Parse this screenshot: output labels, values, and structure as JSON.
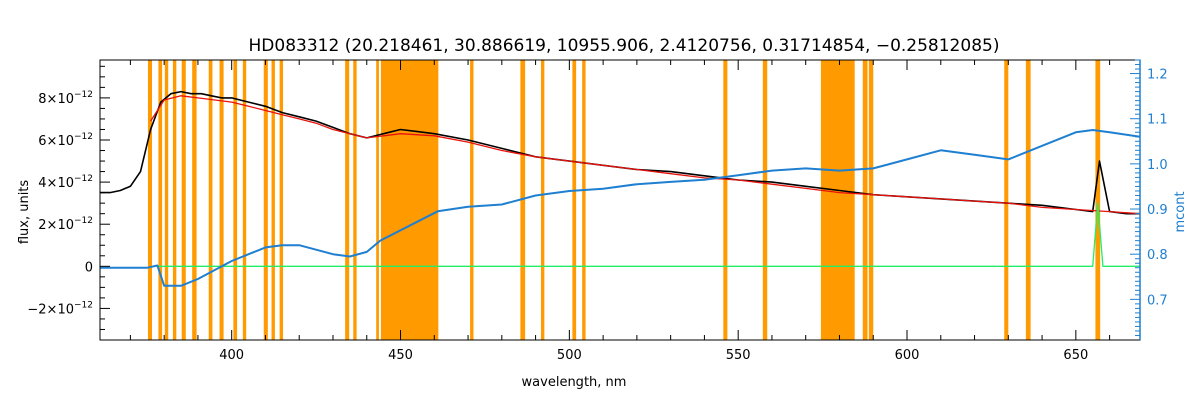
{
  "chart_data": {
    "type": "line",
    "title": "HD083312    (20.218461, 30.886619, 10955.906, 2.4120756, 0.31714854, −0.25812085)",
    "xlabel": "wavelength, nm",
    "ylabel": "flux, units",
    "y2label": "mcont",
    "xlim": [
      361,
      669
    ],
    "ylim": [
      -3.5e-12,
      9.8e-12
    ],
    "y2lim": [
      0.61,
      1.23
    ],
    "x_ticks": [
      400,
      450,
      500,
      550,
      600,
      650
    ],
    "x_tick_labels": [
      "400",
      "450",
      "500",
      "550",
      "600",
      "650"
    ],
    "y_ticks": [
      -2e-12,
      0,
      2e-12,
      4e-12,
      6e-12,
      8e-12
    ],
    "y_tick_bases": [
      "−2×10",
      "0",
      "2×10",
      "4×10",
      "6×10",
      "8×10"
    ],
    "y_tick_exps": [
      "−12",
      "",
      "−12",
      "−12",
      "−12",
      "−12"
    ],
    "y2_ticks": [
      0.7,
      0.8,
      0.9,
      1.0,
      1.1,
      1.2
    ],
    "y2_tick_labels": [
      "0.7",
      "0.8",
      "0.9",
      "1.0",
      "1.1",
      "1.2"
    ],
    "grid": false,
    "colors": {
      "observed": "#000000",
      "model": "#e8120c",
      "residual": "#22ee66",
      "mcont": "#1f7fd0",
      "masked": "#ff9a00",
      "highlight": "#ffff00",
      "right_axis": "#1f7fd0"
    },
    "masked_regions": [
      [
        375.2,
        376.4
      ],
      [
        378.3,
        379.4
      ],
      [
        380.2,
        381.2
      ],
      [
        382.6,
        383.6
      ],
      [
        385.2,
        386.4
      ],
      [
        388.3,
        389.6
      ],
      [
        393.2,
        394.3
      ],
      [
        396.4,
        397.6
      ],
      [
        400.5,
        401.6
      ],
      [
        403.3,
        404.3
      ],
      [
        409.5,
        410.7
      ],
      [
        411.8,
        412.8
      ],
      [
        414.2,
        415.2
      ],
      [
        433.6,
        434.8
      ],
      [
        436.0,
        437.0
      ],
      [
        442.8,
        443.6
      ],
      [
        444.2,
        461.2
      ],
      [
        470.6,
        471.6
      ],
      [
        485.5,
        486.9
      ],
      [
        491.6,
        492.6
      ],
      [
        500.9,
        502.0
      ],
      [
        503.8,
        504.8
      ],
      [
        545.6,
        546.8
      ],
      [
        557.3,
        558.6
      ],
      [
        574.5,
        584.5
      ],
      [
        586.9,
        588.3
      ],
      [
        588.7,
        590.0
      ],
      [
        628.8,
        630.0
      ],
      [
        635.2,
        636.6
      ],
      [
        655.8,
        657.2
      ]
    ],
    "series": [
      {
        "role": "observed",
        "x": [
          361,
          364,
          367,
          370,
          373,
          376,
          379,
          382,
          385,
          388,
          391,
          394,
          397,
          400,
          405,
          410,
          415,
          420,
          425,
          430,
          435,
          440,
          445,
          450,
          455,
          460,
          470,
          480,
          490,
          500,
          510,
          520,
          530,
          540,
          550,
          560,
          570,
          580,
          590,
          600,
          610,
          620,
          630,
          640,
          650,
          655,
          657,
          660,
          665,
          669
        ],
        "y": [
          3.5e-12,
          3.5e-12,
          3.6e-12,
          3.8e-12,
          4.5e-12,
          6.5e-12,
          7.8e-12,
          8.2e-12,
          8.3e-12,
          8.2e-12,
          8.2e-12,
          8.1e-12,
          8e-12,
          8e-12,
          7.8e-12,
          7.6e-12,
          7.3e-12,
          7.1e-12,
          6.9e-12,
          6.6e-12,
          6.3e-12,
          6.1e-12,
          6.3e-12,
          6.5e-12,
          6.4e-12,
          6.3e-12,
          6e-12,
          5.6e-12,
          5.2e-12,
          5e-12,
          4.8e-12,
          4.6e-12,
          4.5e-12,
          4.3e-12,
          4.1e-12,
          4e-12,
          3.8e-12,
          3.6e-12,
          3.4e-12,
          3.3e-12,
          3.2e-12,
          3.1e-12,
          3e-12,
          2.9e-12,
          2.7e-12,
          2.6e-12,
          5e-12,
          2.6e-12,
          2.5e-12,
          2.5e-12
        ]
      },
      {
        "role": "model",
        "x": [
          376,
          380,
          385,
          390,
          395,
          400,
          405,
          410,
          415,
          420,
          425,
          430,
          435,
          440,
          445,
          450,
          460,
          470,
          480,
          490,
          500,
          510,
          520,
          530,
          540,
          550,
          560,
          570,
          580,
          590,
          600,
          610,
          620,
          630,
          640,
          650,
          660,
          669
        ],
        "y": [
          6.9e-12,
          7.9e-12,
          8.1e-12,
          8e-12,
          7.9e-12,
          7.8e-12,
          7.6e-12,
          7.4e-12,
          7.2e-12,
          7e-12,
          6.8e-12,
          6.5e-12,
          6.3e-12,
          6.1e-12,
          6.2e-12,
          6.3e-12,
          6.2e-12,
          5.9e-12,
          5.5e-12,
          5.2e-12,
          5e-12,
          4.8e-12,
          4.6e-12,
          4.4e-12,
          4.2e-12,
          4.1e-12,
          3.9e-12,
          3.7e-12,
          3.5e-12,
          3.4e-12,
          3.3e-12,
          3.2e-12,
          3.1e-12,
          3e-12,
          2.8e-12,
          2.7e-12,
          2.6e-12,
          2.5e-12
        ]
      },
      {
        "role": "residual",
        "x": [
          378,
          400,
          420,
          440,
          460,
          480,
          500,
          520,
          540,
          560,
          580,
          600,
          620,
          640,
          655,
          656.5,
          658,
          669
        ],
        "y": [
          0,
          0,
          0,
          0,
          0,
          0,
          0,
          0,
          0,
          0,
          0,
          0,
          0,
          0,
          0,
          3e-12,
          0,
          0
        ]
      },
      {
        "role": "mcont",
        "axis": "right",
        "x": [
          361,
          375,
          378,
          380,
          385,
          390,
          395,
          400,
          405,
          410,
          415,
          420,
          425,
          430,
          435,
          440,
          444,
          461,
          470,
          480,
          490,
          500,
          510,
          520,
          530,
          540,
          550,
          560,
          570,
          580,
          590,
          600,
          610,
          620,
          630,
          640,
          650,
          655,
          660,
          669
        ],
        "y": [
          0.77,
          0.77,
          0.775,
          0.73,
          0.73,
          0.745,
          0.765,
          0.785,
          0.8,
          0.815,
          0.82,
          0.82,
          0.81,
          0.8,
          0.795,
          0.805,
          0.83,
          0.895,
          0.905,
          0.91,
          0.93,
          0.94,
          0.945,
          0.955,
          0.96,
          0.965,
          0.975,
          0.985,
          0.99,
          0.985,
          0.99,
          1.01,
          1.03,
          1.02,
          1.01,
          1.04,
          1.07,
          1.075,
          1.07,
          1.06
        ]
      }
    ]
  }
}
